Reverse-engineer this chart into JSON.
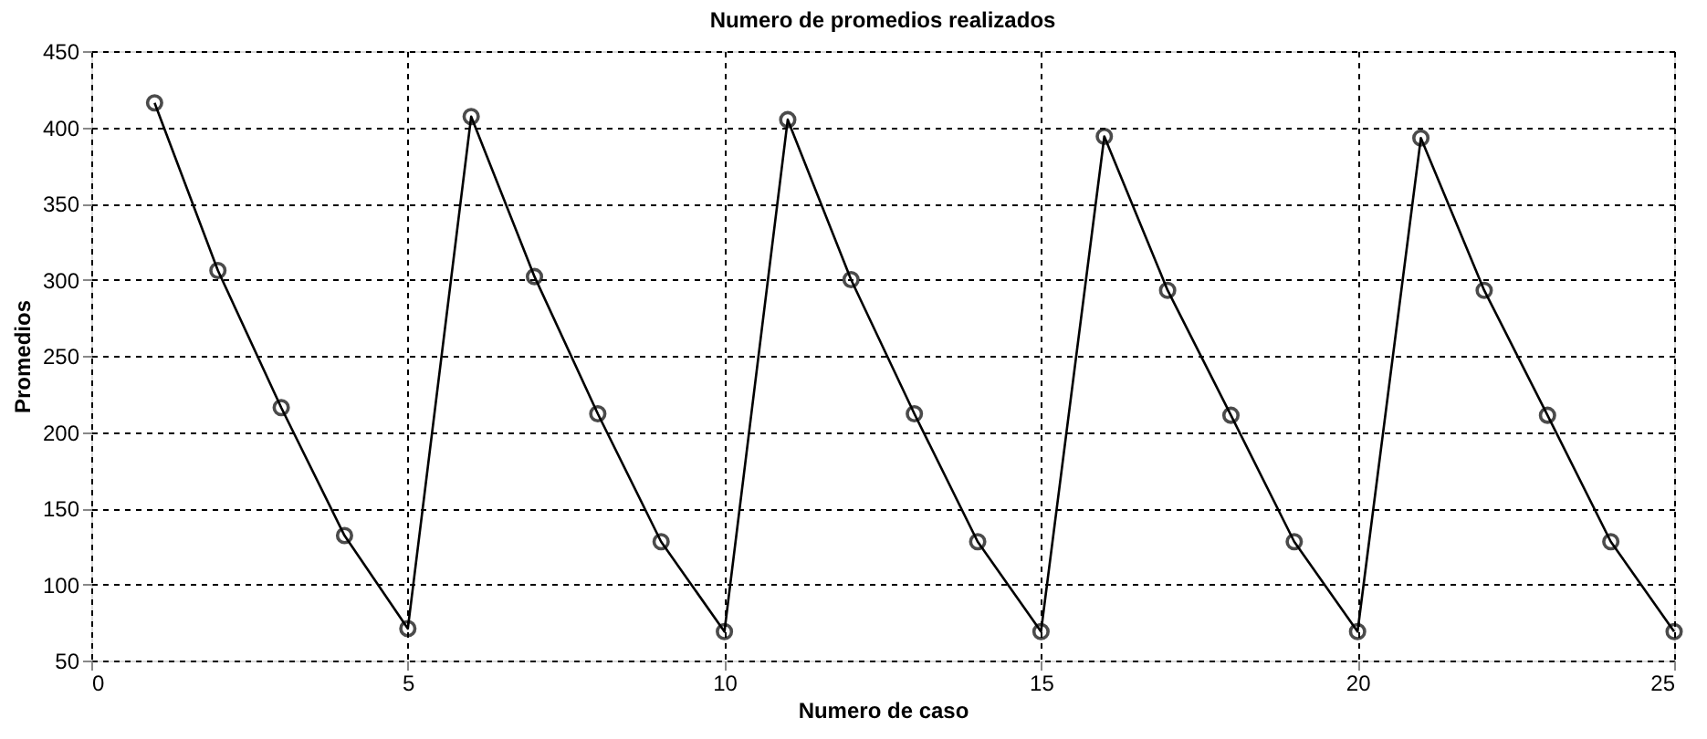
{
  "chart_data": {
    "type": "line",
    "title": "Numero de promedios realizados",
    "xlabel": "Numero de caso",
    "ylabel": "Promedios",
    "x": [
      1,
      2,
      3,
      4,
      5,
      6,
      7,
      8,
      9,
      10,
      11,
      12,
      13,
      14,
      15,
      16,
      17,
      18,
      19,
      20,
      21,
      22,
      23,
      24,
      25
    ],
    "series": [
      {
        "color": "#000000",
        "values": [
          416,
          306,
          216,
          132,
          71,
          407,
          302,
          212,
          128,
          69,
          405,
          300,
          212,
          128,
          69,
          394,
          293,
          211,
          128,
          69,
          393,
          293,
          211,
          128,
          69
        ]
      }
    ],
    "xlim": [
      0,
      25
    ],
    "xticks": [
      0,
      5,
      10,
      15,
      20,
      25
    ],
    "ylim": [
      50,
      450
    ],
    "yticks": [
      50,
      100,
      150,
      200,
      250,
      300,
      350,
      400,
      450
    ],
    "grid": true,
    "marker": "circle",
    "line_style": "solid"
  }
}
